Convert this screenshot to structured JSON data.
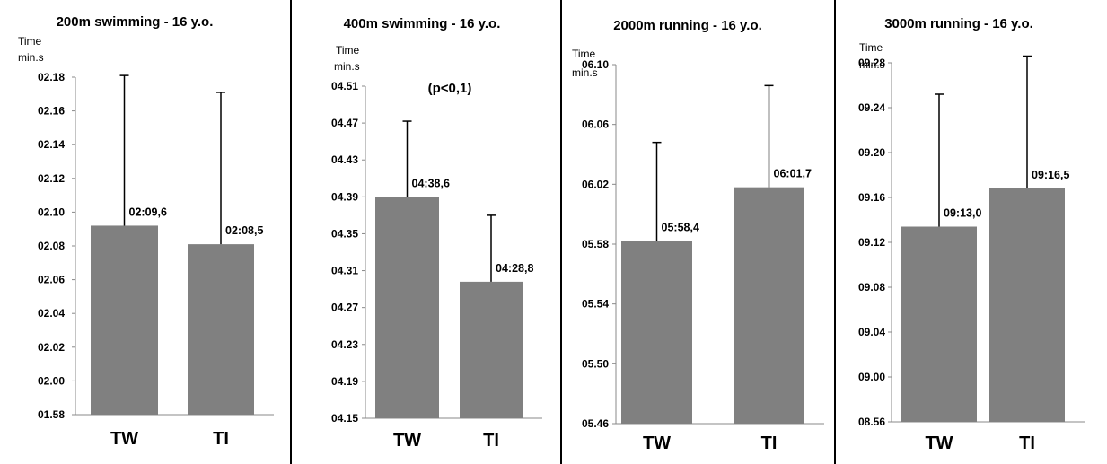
{
  "chart_data": [
    {
      "type": "bar",
      "title": "200m swimming - 16 y.o.",
      "ylabel_line1": "Time",
      "ylabel_line2": "min.s",
      "ytick_labels": [
        "01.58",
        "02.00",
        "02.02",
        "02.04",
        "02.06",
        "02.08",
        "02.10",
        "02.12",
        "02.14",
        "02.16",
        "02.18"
      ],
      "ylim": [
        0,
        10
      ],
      "categories": [
        "TW",
        "TI"
      ],
      "values": [
        5.6,
        5.05
      ],
      "errors": [
        4.45,
        4.5
      ],
      "data_labels": [
        "02:09,6",
        "02:08,5"
      ],
      "annotation": "",
      "bar_color": "#808080"
    },
    {
      "type": "bar",
      "title": "400m swimming - 16 y.o.",
      "ylabel_line1": "Time",
      "ylabel_line2": "min.s",
      "ytick_labels": [
        "04.15",
        "04.19",
        "04.23",
        "04.27",
        "04.31",
        "04.35",
        "04.39",
        "04.43",
        "04.47",
        "04.51"
      ],
      "ylim": [
        0,
        9
      ],
      "categories": [
        "TW",
        "TI"
      ],
      "values": [
        6.0,
        3.7
      ],
      "errors": [
        2.05,
        1.8
      ],
      "data_labels": [
        "04:38,6",
        "04:28,8"
      ],
      "annotation": "(p<0,1)",
      "bar_color": "#808080"
    },
    {
      "type": "bar",
      "title": "2000m running - 16 y.o.",
      "ylabel_line1": "Time",
      "ylabel_line2": "min.s",
      "ytick_labels": [
        "05.46",
        "05.50",
        "05.54",
        "05.58",
        "06.02",
        "06.06",
        "06.10"
      ],
      "ylim": [
        0,
        6
      ],
      "categories": [
        "TW",
        "TI"
      ],
      "values": [
        3.05,
        3.95
      ],
      "errors": [
        1.65,
        1.7
      ],
      "data_labels": [
        "05:58,4",
        "06:01,7"
      ],
      "annotation": "",
      "bar_color": "#808080"
    },
    {
      "type": "bar",
      "title": "3000m running - 16 y.o.",
      "ylabel_line1": "Time",
      "ylabel_line2": "min.s",
      "ytick_labels": [
        "08.56",
        "09.00",
        "09.04",
        "09.08",
        "09.12",
        "09.16",
        "09.20",
        "09.24",
        "09.28"
      ],
      "ylim": [
        0,
        8
      ],
      "categories": [
        "TW",
        "TI"
      ],
      "values": [
        4.35,
        5.2
      ],
      "errors": [
        2.95,
        2.95
      ],
      "data_labels": [
        "09:13,0",
        "09:16,5"
      ],
      "annotation": "",
      "bar_color": "#808080"
    }
  ]
}
